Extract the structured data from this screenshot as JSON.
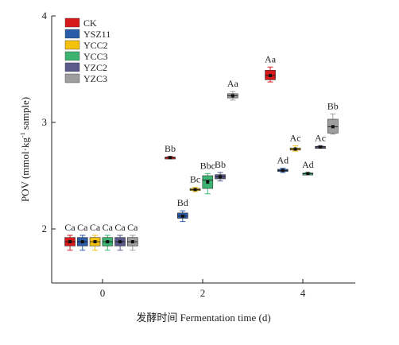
{
  "chart_data": {
    "type": "box",
    "xlabel": "发酵时间 Fermentation time (d)",
    "ylabel": "POV (mmol·kg",
    "ylabel_sup": "-1",
    "ylabel_tail": " sample)",
    "xlim": [
      -1,
      5
    ],
    "ylim": [
      1.5,
      4.0
    ],
    "xticks": [
      {
        "value": 0,
        "label": "0"
      },
      {
        "value": 2,
        "label": "2"
      },
      {
        "value": 4,
        "label": "4"
      }
    ],
    "yticks": [
      {
        "value": 2,
        "label": "2"
      },
      {
        "value": 3,
        "label": "3"
      },
      {
        "value": 4,
        "label": "4"
      }
    ],
    "legend_position": "top-left",
    "series": [
      {
        "name": "CK",
        "color": "#d7191c"
      },
      {
        "name": "YSZ11",
        "color": "#2a5caa"
      },
      {
        "name": "YCC2",
        "color": "#f4c20d"
      },
      {
        "name": "YCC3",
        "color": "#3cb371"
      },
      {
        "name": "YZC2",
        "color": "#5a5a8c"
      },
      {
        "name": "YZC3",
        "color": "#9e9e9e"
      }
    ],
    "boxes": [
      {
        "series": 0,
        "x": -0.65,
        "min": 1.8,
        "q1": 1.84,
        "median": 1.88,
        "mean": 1.88,
        "q3": 1.92,
        "max": 1.94,
        "letter": "Ca"
      },
      {
        "series": 1,
        "x": -0.4,
        "min": 1.8,
        "q1": 1.84,
        "median": 1.88,
        "mean": 1.88,
        "q3": 1.92,
        "max": 1.94,
        "letter": "Ca"
      },
      {
        "series": 2,
        "x": -0.15,
        "min": 1.8,
        "q1": 1.84,
        "median": 1.88,
        "mean": 1.88,
        "q3": 1.92,
        "max": 1.94,
        "letter": "Ca"
      },
      {
        "series": 3,
        "x": 0.1,
        "min": 1.8,
        "q1": 1.84,
        "median": 1.88,
        "mean": 1.88,
        "q3": 1.92,
        "max": 1.94,
        "letter": "Ca"
      },
      {
        "series": 4,
        "x": 0.35,
        "min": 1.8,
        "q1": 1.84,
        "median": 1.88,
        "mean": 1.88,
        "q3": 1.92,
        "max": 1.94,
        "letter": "Ca"
      },
      {
        "series": 5,
        "x": 0.6,
        "min": 1.8,
        "q1": 1.84,
        "median": 1.88,
        "mean": 1.88,
        "q3": 1.92,
        "max": 1.94,
        "letter": "Ca"
      },
      {
        "series": 0,
        "x": 1.35,
        "min": 2.66,
        "q1": 2.665,
        "median": 2.67,
        "mean": 2.67,
        "q3": 2.675,
        "max": 2.68,
        "letter": "Bb"
      },
      {
        "series": 1,
        "x": 1.6,
        "min": 2.07,
        "q1": 2.1,
        "median": 2.12,
        "mean": 2.12,
        "q3": 2.15,
        "max": 2.17,
        "letter": "Bd"
      },
      {
        "series": 2,
        "x": 1.85,
        "min": 2.35,
        "q1": 2.36,
        "median": 2.37,
        "mean": 2.37,
        "q3": 2.38,
        "max": 2.39,
        "letter": "Bc"
      },
      {
        "series": 3,
        "x": 2.1,
        "min": 2.33,
        "q1": 2.38,
        "median": 2.46,
        "mean": 2.44,
        "q3": 2.5,
        "max": 2.52,
        "letter": "Bbc"
      },
      {
        "series": 4,
        "x": 2.35,
        "min": 2.45,
        "q1": 2.47,
        "median": 2.49,
        "mean": 2.49,
        "q3": 2.51,
        "max": 2.53,
        "letter": "Bb"
      },
      {
        "series": 5,
        "x": 2.6,
        "min": 3.21,
        "q1": 3.23,
        "median": 3.25,
        "mean": 3.25,
        "q3": 3.27,
        "max": 3.29,
        "letter": "Aa"
      },
      {
        "series": 0,
        "x": 3.35,
        "min": 3.38,
        "q1": 3.4,
        "median": 3.44,
        "mean": 3.44,
        "q3": 3.49,
        "max": 3.52,
        "letter": "Aa"
      },
      {
        "series": 1,
        "x": 3.6,
        "min": 2.53,
        "q1": 2.54,
        "median": 2.55,
        "mean": 2.55,
        "q3": 2.56,
        "max": 2.57,
        "letter": "Ad"
      },
      {
        "series": 2,
        "x": 3.85,
        "min": 2.73,
        "q1": 2.74,
        "median": 2.75,
        "mean": 2.75,
        "q3": 2.76,
        "max": 2.78,
        "letter": "Ac"
      },
      {
        "series": 3,
        "x": 4.1,
        "min": 2.51,
        "q1": 2.515,
        "median": 2.52,
        "mean": 2.52,
        "q3": 2.525,
        "max": 2.53,
        "letter": "Ad"
      },
      {
        "series": 4,
        "x": 4.35,
        "min": 2.76,
        "q1": 2.765,
        "median": 2.77,
        "mean": 2.77,
        "q3": 2.775,
        "max": 2.78,
        "letter": "Ac"
      },
      {
        "series": 5,
        "x": 4.6,
        "min": 2.89,
        "q1": 2.9,
        "median": 2.96,
        "mean": 2.96,
        "q3": 3.03,
        "max": 3.08,
        "letter": "Bb"
      }
    ]
  }
}
